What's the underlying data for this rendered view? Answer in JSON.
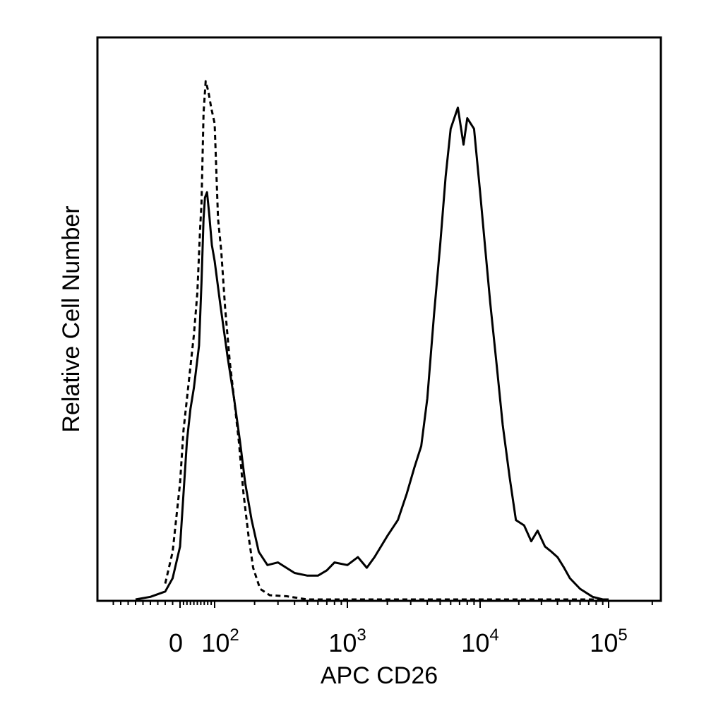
{
  "chart_data": {
    "type": "line",
    "title": "",
    "xlabel": "APC CD26",
    "ylabel": "Relative Cell Number",
    "x_scale": "biexponential",
    "x_tick_labels": [
      {
        "value": 0,
        "base": "0",
        "exp": ""
      },
      {
        "value": 100,
        "base": "10",
        "exp": "2"
      },
      {
        "value": 1000,
        "base": "10",
        "exp": "3"
      },
      {
        "value": 10000,
        "base": "10",
        "exp": "4"
      },
      {
        "value": 100000,
        "base": "10",
        "exp": "5"
      }
    ],
    "y_ticks_shown": false,
    "ylim": [
      0,
      100
    ],
    "grid": false,
    "legend": "none",
    "series": [
      {
        "style": "solid",
        "color": "#000000",
        "points": [
          [
            -60,
            0
          ],
          [
            -40,
            0.5
          ],
          [
            -20,
            1.5
          ],
          [
            -10,
            4
          ],
          [
            0,
            10
          ],
          [
            10,
            20
          ],
          [
            20,
            30
          ],
          [
            30,
            36
          ],
          [
            40,
            40
          ],
          [
            55,
            48
          ],
          [
            62,
            60
          ],
          [
            68,
            72
          ],
          [
            72,
            76
          ],
          [
            78,
            77
          ],
          [
            84,
            73
          ],
          [
            92,
            67
          ],
          [
            100,
            64
          ],
          [
            110,
            56
          ],
          [
            125,
            46
          ],
          [
            140,
            38
          ],
          [
            155,
            30
          ],
          [
            170,
            22
          ],
          [
            190,
            15
          ],
          [
            215,
            9
          ],
          [
            250,
            6.5
          ],
          [
            300,
            7
          ],
          [
            400,
            5
          ],
          [
            500,
            4.5
          ],
          [
            600,
            4.5
          ],
          [
            700,
            5.5
          ],
          [
            800,
            7
          ],
          [
            1000,
            6.5
          ],
          [
            1200,
            8
          ],
          [
            1400,
            6
          ],
          [
            1600,
            8
          ],
          [
            2000,
            12
          ],
          [
            2400,
            15
          ],
          [
            2800,
            20
          ],
          [
            3200,
            25
          ],
          [
            3600,
            29
          ],
          [
            4000,
            38
          ],
          [
            4500,
            54
          ],
          [
            5000,
            67
          ],
          [
            5500,
            80
          ],
          [
            6000,
            89
          ],
          [
            6800,
            93
          ],
          [
            7500,
            86
          ],
          [
            8000,
            91
          ],
          [
            9000,
            89
          ],
          [
            10000,
            77
          ],
          [
            11000,
            66
          ],
          [
            12000,
            56
          ],
          [
            13500,
            44
          ],
          [
            15000,
            33
          ],
          [
            17000,
            23
          ],
          [
            19000,
            15
          ],
          [
            22000,
            14
          ],
          [
            25000,
            11
          ],
          [
            28000,
            13
          ],
          [
            32000,
            10
          ],
          [
            36000,
            9
          ],
          [
            40000,
            8
          ],
          [
            45000,
            6
          ],
          [
            50000,
            4
          ],
          [
            60000,
            2
          ],
          [
            75000,
            0.5
          ],
          [
            90000,
            0
          ],
          [
            100000,
            0
          ]
        ]
      },
      {
        "style": "dashed",
        "color": "#000000",
        "points": [
          [
            -20,
            3
          ],
          [
            -10,
            9
          ],
          [
            0,
            22
          ],
          [
            10,
            32
          ],
          [
            20,
            38
          ],
          [
            30,
            44
          ],
          [
            40,
            50
          ],
          [
            50,
            58
          ],
          [
            58,
            70
          ],
          [
            62,
            75
          ],
          [
            68,
            92
          ],
          [
            74,
            98
          ],
          [
            82,
            96
          ],
          [
            90,
            93
          ],
          [
            100,
            90
          ],
          [
            106,
            72
          ],
          [
            112,
            66
          ],
          [
            120,
            55
          ],
          [
            130,
            45
          ],
          [
            140,
            38
          ],
          [
            152,
            30
          ],
          [
            165,
            20
          ],
          [
            180,
            12
          ],
          [
            195,
            6
          ],
          [
            220,
            2
          ],
          [
            260,
            0.8
          ],
          [
            350,
            0.6
          ],
          [
            500,
            0
          ],
          [
            1000,
            0
          ],
          [
            10000,
            0
          ],
          [
            100000,
            0
          ]
        ]
      }
    ]
  }
}
